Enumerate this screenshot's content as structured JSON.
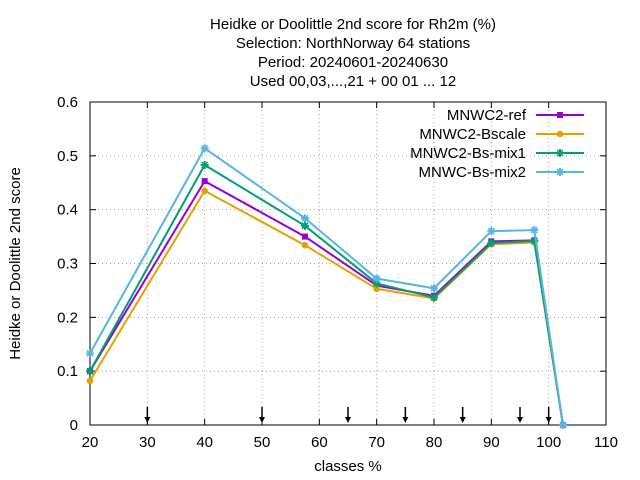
{
  "chart_data": {
    "type": "line",
    "title_lines": [
      "Heidke or Doolittle 2nd score  for Rh2m (%)",
      "Selection: NorthNorway     64 stations",
      "Period: 20240601-20240630",
      "Used 00,03,...,21 + 00 01 ... 12"
    ],
    "xlabel": "classes %",
    "ylabel": "Heidke or Doolittle 2nd score",
    "xlim": [
      20,
      110
    ],
    "ylim": [
      0,
      0.6
    ],
    "xticks": [
      20,
      30,
      40,
      50,
      60,
      70,
      80,
      90,
      100,
      110
    ],
    "xtick_labels": [
      "20",
      "30",
      "40",
      "50",
      "60",
      "70",
      "80",
      "90",
      "100",
      "110"
    ],
    "yticks": [
      0,
      0.1,
      0.2,
      0.3,
      0.4,
      0.5,
      0.6
    ],
    "ytick_labels": [
      "0",
      "0.1",
      "0.2",
      "0.3",
      "0.4",
      "0.5",
      "0.6"
    ],
    "grid": true,
    "legend_position": "top-right",
    "threshold_arrows_x": [
      30,
      50,
      65,
      75,
      85,
      95,
      100
    ],
    "x": [
      20,
      40,
      57.5,
      70,
      80,
      90,
      97.5,
      102.5
    ],
    "series": [
      {
        "name": "MNWC2-ref",
        "color": "#9400d3",
        "marker": "square",
        "values": [
          0.1,
          0.453,
          0.35,
          0.259,
          0.24,
          0.341,
          0.343,
          0.0
        ]
      },
      {
        "name": "MNWC2-Bscale",
        "color": "#e6a000",
        "marker": "circle",
        "values": [
          0.082,
          0.435,
          0.334,
          0.253,
          0.235,
          0.336,
          0.339,
          0.0
        ]
      },
      {
        "name": "MNWC2-Bs-mix1",
        "color": "#009e73",
        "marker": "star",
        "values": [
          0.1,
          0.483,
          0.37,
          0.263,
          0.237,
          0.338,
          0.342,
          0.0
        ]
      },
      {
        "name": "MNWC-Bs-mix2",
        "color": "#56b4e9",
        "marker": "star",
        "values": [
          0.133,
          0.514,
          0.384,
          0.272,
          0.254,
          0.36,
          0.362,
          0.0
        ]
      }
    ]
  }
}
